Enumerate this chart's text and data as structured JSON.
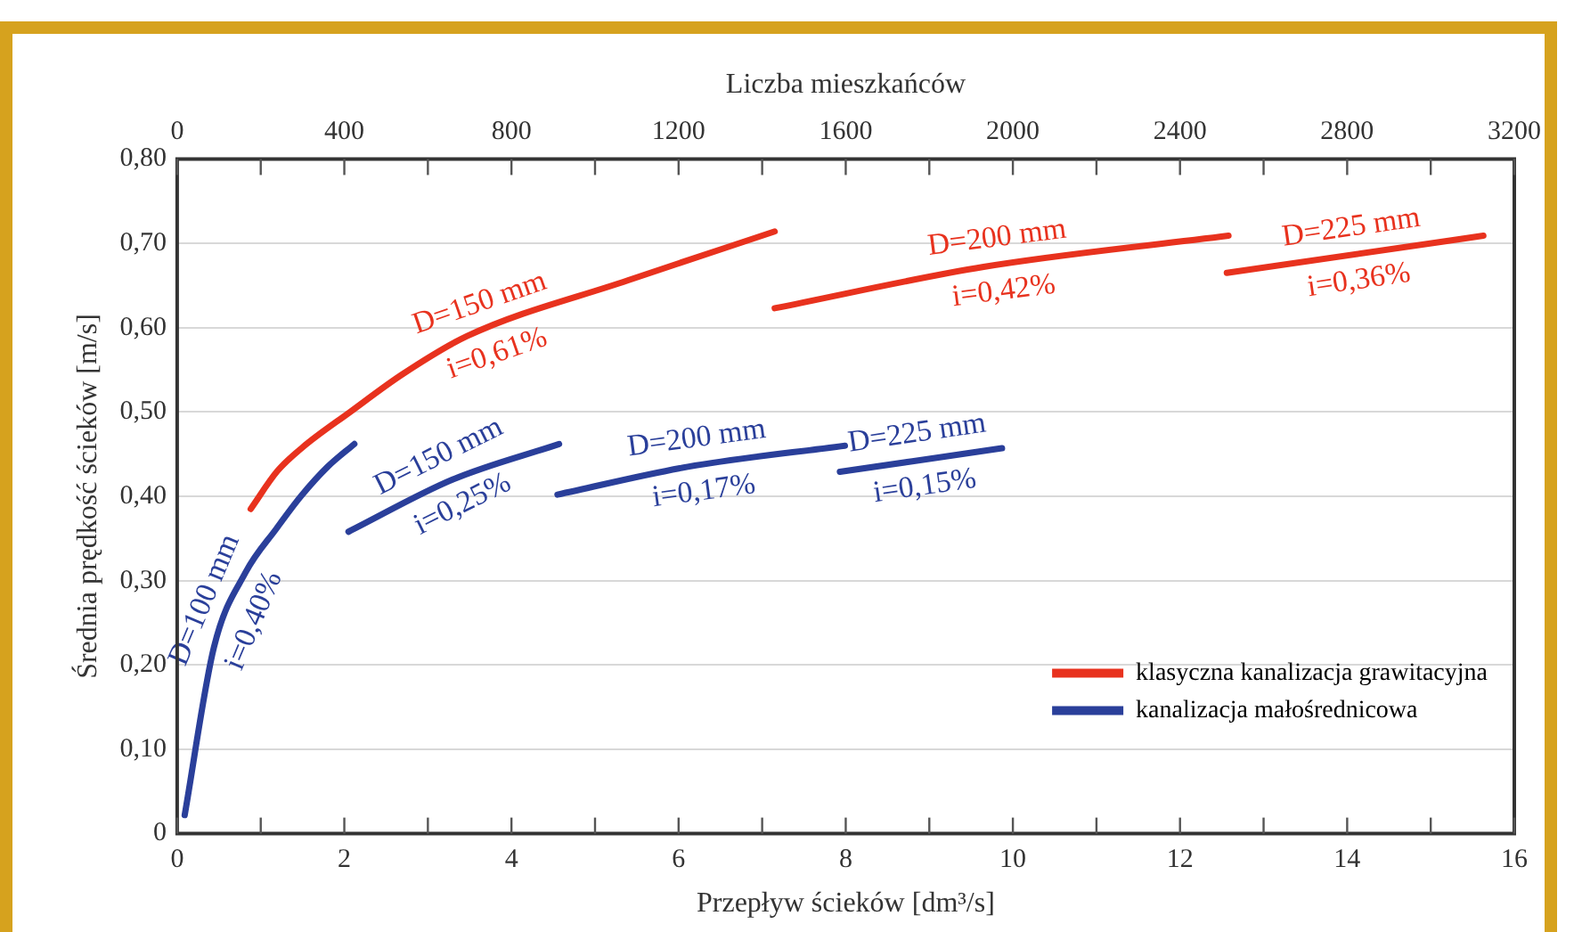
{
  "chart_data": {
    "type": "line",
    "xlabel": "Przepływ ścieków [dm³/s]",
    "ylabel": "Średnia prędkość ścieków [m/s]",
    "x2label": "Liczba mieszkańców",
    "xlim": [
      0,
      16
    ],
    "xticks": [
      0,
      {
        "value": 1,
        "label": null
      },
      2,
      {
        "value": 3,
        "label": null
      },
      4,
      {
        "value": 5,
        "label": null
      },
      6,
      {
        "value": 7,
        "label": null
      },
      8,
      {
        "value": 9,
        "label": null
      },
      10,
      {
        "value": 11,
        "label": null
      },
      12,
      {
        "value": 13,
        "label": null
      },
      14,
      {
        "value": 15,
        "label": null
      },
      16
    ],
    "x2lim": [
      0,
      3200
    ],
    "x2ticks": [
      0,
      {
        "value": 200,
        "label": null
      },
      400,
      {
        "value": 600,
        "label": null
      },
      800,
      {
        "value": 1000,
        "label": null
      },
      1200,
      {
        "value": 1400,
        "label": null
      },
      1600,
      {
        "value": 1800,
        "label": null
      },
      2000,
      {
        "value": 2200,
        "label": null
      },
      2400,
      {
        "value": 2600,
        "label": null
      },
      2800,
      {
        "value": 3000,
        "label": null
      },
      3200
    ],
    "ylim": [
      0,
      0.8
    ],
    "yticks": [
      0,
      {
        "value": 0.1,
        "label": "0,10"
      },
      {
        "value": 0.2,
        "label": "0,20"
      },
      {
        "value": 0.3,
        "label": "0,30"
      },
      {
        "value": 0.4,
        "label": "0,40"
      },
      {
        "value": 0.5,
        "label": "0,50"
      },
      {
        "value": 0.6,
        "label": "0,60"
      },
      {
        "value": 0.7,
        "label": "0,70"
      },
      {
        "value": 0.8,
        "label": "0,80"
      }
    ],
    "grid": "y",
    "legend": "bottom right",
    "marker": "none",
    "line_style": "solid",
    "series": [
      {
        "name": "klasyczna kanalizacja grawitacyjna",
        "color": "#e8321e",
        "x": [
          0.88,
          1.2,
          1.5,
          2.07,
          2.7,
          3.47,
          5.39,
          7.15,
          null,
          7.15,
          9.65,
          12.58,
          null,
          12.56,
          15.63
        ],
        "values": [
          0.385,
          0.43,
          0.458,
          0.5,
          0.545,
          0.59,
          0.656,
          0.714,
          null,
          0.623,
          0.672,
          0.709,
          null,
          0.665,
          0.709
        ]
      },
      {
        "name": "kanalizacja małośrednicowa",
        "color": "#2a3f9a",
        "x": [
          0.09,
          0.44,
          0.82,
          1.19,
          1.48,
          1.8,
          2.12,
          null,
          2.05,
          3.3,
          4.57,
          null,
          4.55,
          6.11,
          7.99,
          null,
          7.93,
          9.87
        ],
        "values": [
          0.022,
          0.221,
          0.31,
          0.362,
          0.4,
          0.435,
          0.462,
          null,
          0.358,
          0.42,
          0.462,
          null,
          0.402,
          0.435,
          0.46,
          null,
          0.429,
          0.457
        ]
      }
    ],
    "annotations": [
      "D=150 mm",
      "i=0,61%",
      "D=200 mm",
      "i=0,42%",
      "D=225 mm",
      "i=0,36%",
      "D=100 mm",
      "i=0,40%",
      "D=150 mm",
      "i=0,25%",
      "D=200 mm",
      "i=0,17%",
      "D=225 mm",
      "i=0,15%"
    ]
  }
}
